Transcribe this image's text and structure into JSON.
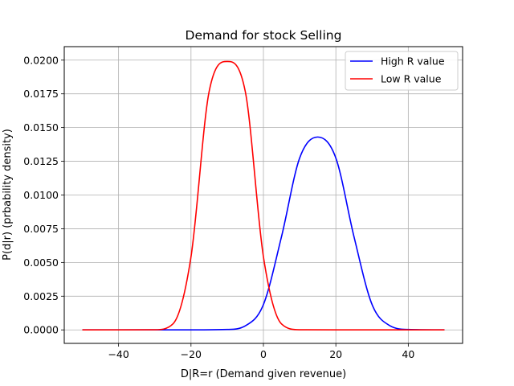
{
  "chart_data": {
    "type": "line",
    "title": "Demand for stock Selling",
    "xlabel": "D|R=r (Demand given revenue)",
    "ylabel": "P(d|r) (prbability density)",
    "xlim": [
      -55,
      55
    ],
    "ylim": [
      -0.001,
      0.021
    ],
    "xticks": [
      -40,
      -20,
      0,
      20,
      40
    ],
    "xtick_labels": [
      "−40",
      "−20",
      "0",
      "20",
      "40"
    ],
    "yticks": [
      0.0,
      0.0025,
      0.005,
      0.0075,
      0.01,
      0.0125,
      0.015,
      0.0175,
      0.02
    ],
    "ytick_labels": [
      "0.0000",
      "0.0025",
      "0.0050",
      "0.0075",
      "0.0100",
      "0.0125",
      "0.0150",
      "0.0175",
      "0.0200"
    ],
    "grid": true,
    "legend_position": "top-right",
    "series": [
      {
        "name": "High R value",
        "color": "#0000ff",
        "x": [
          -50,
          -40,
          -30,
          -20,
          -10,
          -5,
          0,
          5,
          10,
          15,
          20,
          25,
          30,
          35,
          40,
          50
        ],
        "y": [
          0.0,
          0.0,
          0.0,
          0.0,
          3e-05,
          0.0003,
          0.00188,
          0.00692,
          0.01274,
          0.0143,
          0.01274,
          0.00692,
          0.00188,
          0.0003,
          3e-05,
          0.0
        ]
      },
      {
        "name": "Low R value",
        "color": "#ff0000",
        "x": [
          -50,
          -40,
          -30,
          -25,
          -20,
          -15,
          -10,
          -5,
          0,
          5,
          10,
          20,
          30,
          40,
          50
        ],
        "y": [
          0.0,
          0.0,
          1e-05,
          0.00044,
          0.00542,
          0.01766,
          0.0199,
          0.01766,
          0.00542,
          0.00044,
          1e-05,
          0.0,
          0.0,
          0.0,
          0.0
        ]
      }
    ]
  }
}
